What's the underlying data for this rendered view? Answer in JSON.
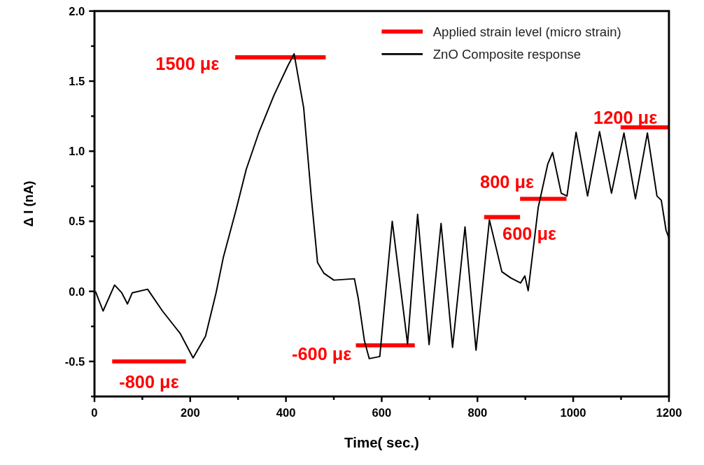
{
  "chart_data": {
    "type": "line",
    "xlabel": "Time( sec.)",
    "ylabel": "Δ I (nA)",
    "xlim": [
      0,
      1200
    ],
    "ylim": [
      -0.75,
      2.0
    ],
    "xticks": [
      0,
      {
        "value": 100,
        "label": null
      },
      200,
      {
        "value": 300,
        "label": null
      },
      400,
      {
        "value": 500,
        "label": null
      },
      600,
      {
        "value": 700,
        "label": null
      },
      800,
      {
        "value": 900,
        "label": null
      },
      1000,
      {
        "value": 1100,
        "label": null
      },
      1200
    ],
    "yticks": [
      {
        "value": -0.75,
        "label": null
      },
      {
        "value": -0.5,
        "label": "-0.5"
      },
      {
        "value": -0.25,
        "label": null
      },
      {
        "value": 0,
        "label": "0.0"
      },
      {
        "value": 0.25,
        "label": null
      },
      {
        "value": 0.5,
        "label": "0.5"
      },
      {
        "value": 0.75,
        "label": null
      },
      {
        "value": 1,
        "label": "1.0"
      },
      {
        "value": 1.25,
        "label": null
      },
      {
        "value": 1.5,
        "label": "1.5"
      },
      {
        "value": 1.75,
        "label": null
      },
      {
        "value": 2,
        "label": "2.0"
      }
    ],
    "grid": false,
    "legend": "top right",
    "series": [
      {
        "name": "Applied strain level (micro strain)",
        "color": "#ff0000",
        "x": [
          37,
          191,
          null,
          294,
          483,
          null,
          546,
          669,
          null,
          814,
          889,
          null,
          889,
          986,
          null,
          1099,
          1199
        ],
        "values": [
          -0.5,
          -0.5,
          null,
          1.67,
          1.67,
          null,
          -0.385,
          -0.385,
          null,
          0.53,
          0.53,
          null,
          0.66,
          0.66,
          null,
          1.17,
          1.17
        ]
      },
      {
        "name": "ZnO  Composite response",
        "color": "#000000",
        "x": [
          2,
          18,
          42,
          57,
          69,
          79,
          111,
          142,
          179,
          206,
          232,
          254,
          269,
          296,
          317,
          343,
          375,
          404,
          417,
          437,
          453,
          466,
          479,
          500,
          543,
          551,
          564,
          574,
          596,
          622,
          654,
          675,
          699,
          724,
          748,
          774,
          797,
          825,
          851,
          870,
          890,
          899,
          906,
          927,
          947,
          957,
          975,
          987,
          1006,
          1030,
          1055,
          1080,
          1106,
          1130,
          1155,
          1175,
          1184,
          1194,
          1200
        ],
        "values": [
          0.0,
          -0.14,
          0.045,
          -0.01,
          -0.09,
          -0.01,
          0.015,
          -0.14,
          -0.3,
          -0.475,
          -0.32,
          -0.01,
          0.24,
          0.585,
          0.87,
          1.13,
          1.4,
          1.61,
          1.695,
          1.31,
          0.67,
          0.205,
          0.13,
          0.08,
          0.09,
          -0.05,
          -0.355,
          -0.48,
          -0.465,
          0.5,
          -0.375,
          0.55,
          -0.38,
          0.485,
          -0.4,
          0.46,
          -0.42,
          0.51,
          0.14,
          0.095,
          0.06,
          0.11,
          0.005,
          0.6,
          0.91,
          0.99,
          0.7,
          0.68,
          1.135,
          0.68,
          1.14,
          0.7,
          1.13,
          0.66,
          1.13,
          0.68,
          0.65,
          0.435,
          0.38
        ]
      }
    ],
    "annotations": [
      "-800 με",
      "1500 με",
      "-600 με",
      "600 με",
      "800 με",
      "1200 με"
    ]
  }
}
